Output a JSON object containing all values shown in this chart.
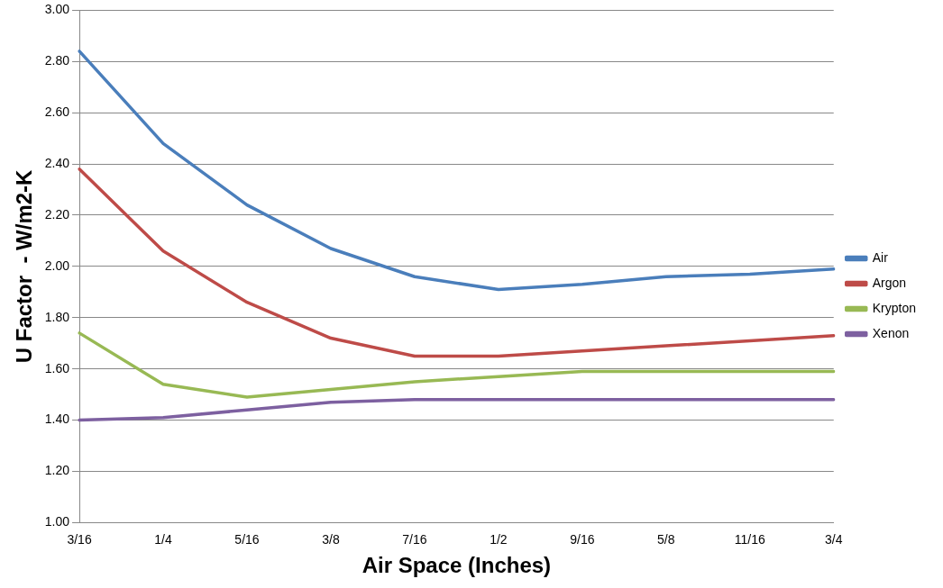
{
  "chart_data": {
    "type": "line",
    "xlabel": "Air Space (Inches)",
    "ylabel": "U Factor  - W/m2-K",
    "categories": [
      "3/16",
      "1/4",
      "5/16",
      "3/8",
      "7/16",
      "1/2",
      "9/16",
      "5/8",
      "11/16",
      "3/4"
    ],
    "series": [
      {
        "name": "Air",
        "color": "#4a7ebb",
        "values": [
          2.84,
          2.48,
          2.24,
          2.07,
          1.96,
          1.91,
          1.93,
          1.96,
          1.97,
          1.99
        ]
      },
      {
        "name": "Argon",
        "color": "#be4b48",
        "values": [
          2.38,
          2.06,
          1.86,
          1.72,
          1.65,
          1.65,
          1.67,
          1.69,
          1.71,
          1.73
        ]
      },
      {
        "name": "Krypton",
        "color": "#98b954",
        "values": [
          1.74,
          1.54,
          1.49,
          1.52,
          1.55,
          1.57,
          1.59,
          1.59,
          1.59,
          1.59
        ]
      },
      {
        "name": "Xenon",
        "color": "#7d60a0",
        "values": [
          1.4,
          1.41,
          1.44,
          1.47,
          1.48,
          1.48,
          1.48,
          1.48,
          1.48,
          1.48
        ]
      }
    ],
    "ylim": [
      1,
      3
    ],
    "yticks": [
      {
        "value": 1,
        "label": "1.00"
      },
      {
        "value": 1.2,
        "label": "1.20"
      },
      {
        "value": 1.4,
        "label": "1.40"
      },
      {
        "value": 1.6,
        "label": "1.60"
      },
      {
        "value": 1.8,
        "label": "1.80"
      },
      {
        "value": 2,
        "label": "2.00"
      },
      {
        "value": 2.2,
        "label": "2.20"
      },
      {
        "value": 2.4,
        "label": "2.40"
      },
      {
        "value": 2.6,
        "label": "2.60"
      },
      {
        "value": 2.8,
        "label": "2.80"
      },
      {
        "value": 3,
        "label": "3.00"
      }
    ],
    "grid": "y",
    "legend": "right",
    "marker": "none",
    "line_style": "solid"
  }
}
